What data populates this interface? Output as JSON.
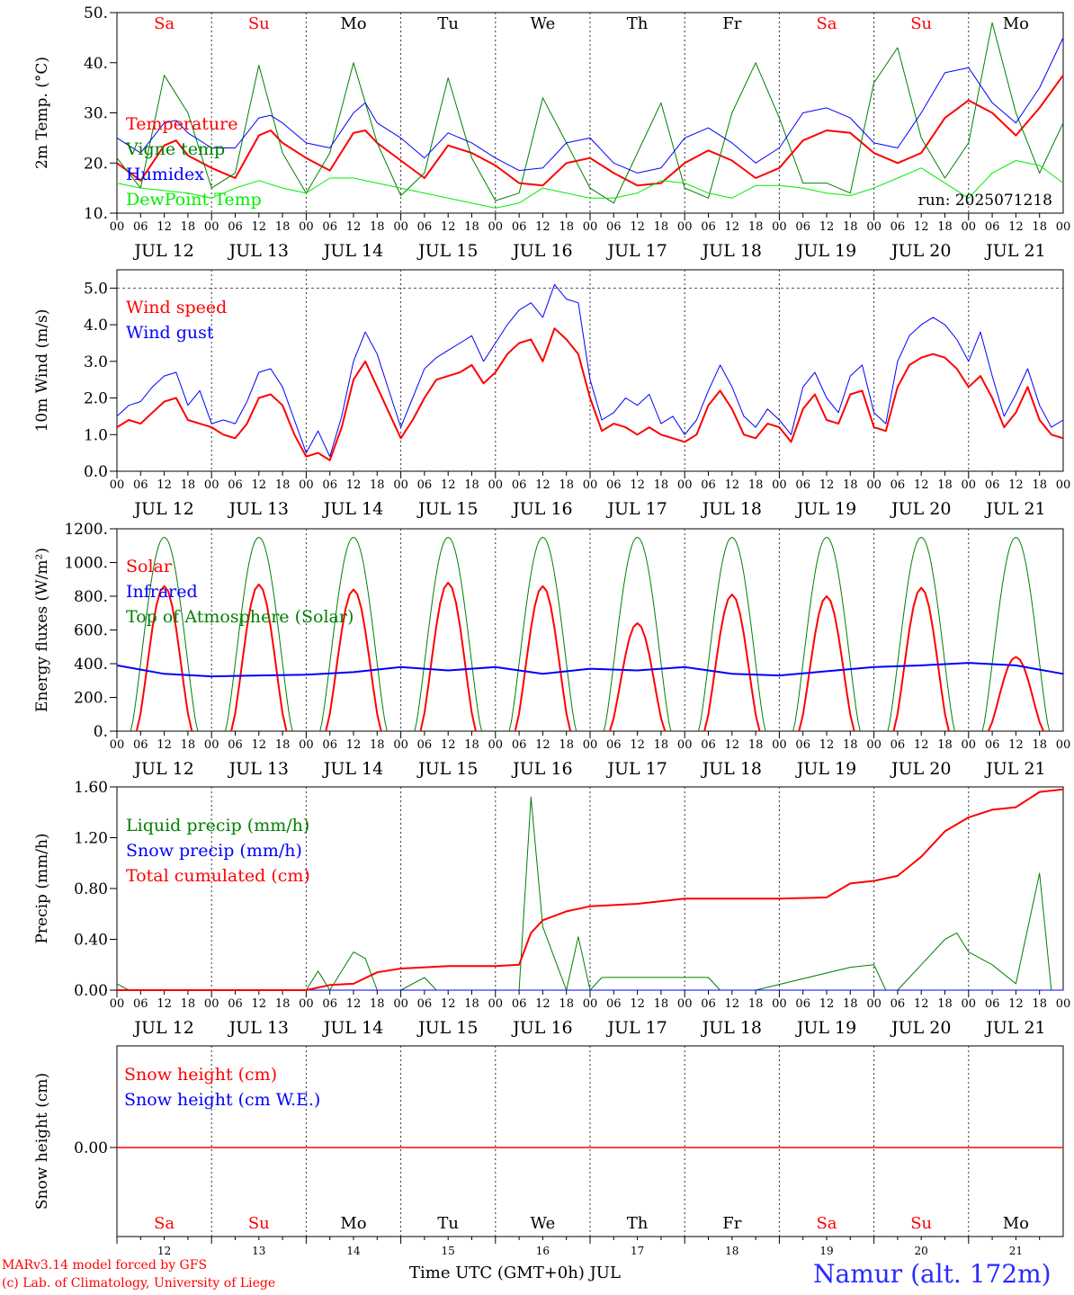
{
  "run_label": "run: 2025071218",
  "footer": {
    "model_line": "MARv3.14 model forced by GFS",
    "copyright_line": "(c) Lab. of Climatology, University of Liege",
    "xaxis_title": "Time UTC (GMT+0h) JUL",
    "station": "Namur (alt. 172m)"
  },
  "colors": {
    "red": "#ff0000",
    "blue": "#0000ff",
    "green": "#008000",
    "lightgreen": "#00ee00",
    "weekend": "#ff0000",
    "weekday": "#000000"
  },
  "days": [
    {
      "abbr": "Sa",
      "date": "JUL 12",
      "num": "12",
      "weekend": true
    },
    {
      "abbr": "Su",
      "date": "JUL 13",
      "num": "13",
      "weekend": true
    },
    {
      "abbr": "Mo",
      "date": "JUL 14",
      "num": "14",
      "weekend": false
    },
    {
      "abbr": "Tu",
      "date": "JUL 15",
      "num": "15",
      "weekend": false
    },
    {
      "abbr": "We",
      "date": "JUL 16",
      "num": "16",
      "weekend": false
    },
    {
      "abbr": "Th",
      "date": "JUL 17",
      "num": "17",
      "weekend": false
    },
    {
      "abbr": "Fr",
      "date": "JUL 18",
      "num": "18",
      "weekend": false
    },
    {
      "abbr": "Sa",
      "date": "JUL 19",
      "num": "19",
      "weekend": true
    },
    {
      "abbr": "Su",
      "date": "JUL 20",
      "num": "20",
      "weekend": true
    },
    {
      "abbr": "Mo",
      "date": "JUL 21",
      "num": "21",
      "weekend": false
    }
  ],
  "hour_ticks": [
    "00",
    "06",
    "12",
    "18"
  ],
  "final_hour_tick": "00",
  "chart_data": [
    {
      "type": "line",
      "ylabel": "2m Temp. (°C)",
      "ylim": [
        10,
        50
      ],
      "yticks": [
        "10.",
        "20.",
        "30.",
        "40.",
        "50."
      ],
      "x_unit": "hours from JUL 12 00 UTC",
      "series": [
        {
          "name": "Temperature",
          "color": "#ff0000",
          "width": 2,
          "x": [
            0,
            6,
            12,
            15,
            18,
            24,
            30,
            36,
            39,
            42,
            48,
            54,
            60,
            63,
            66,
            72,
            78,
            84,
            90,
            96,
            102,
            108,
            114,
            120,
            126,
            132,
            138,
            144,
            150,
            156,
            162,
            168,
            174,
            180,
            186,
            192,
            198,
            204,
            210,
            216,
            222,
            228,
            234,
            240
          ],
          "y": [
            20,
            16.5,
            23.5,
            24.5,
            21.5,
            19,
            17,
            25.5,
            26.5,
            24,
            21,
            18.5,
            26,
            26.5,
            24,
            20.5,
            17,
            23.5,
            22,
            19.5,
            16,
            15.5,
            20,
            21,
            18,
            15.5,
            16,
            20,
            22.5,
            20.5,
            17,
            19,
            24.5,
            26.5,
            26,
            22,
            20,
            22,
            29,
            32.5,
            30,
            25.5,
            31,
            37.5
          ]
        },
        {
          "name": "Vigne temp",
          "color": "#008000",
          "width": 1,
          "x": [
            0,
            6,
            12,
            18,
            24,
            30,
            36,
            42,
            48,
            54,
            60,
            66,
            72,
            78,
            84,
            90,
            96,
            102,
            108,
            114,
            120,
            126,
            132,
            138,
            144,
            150,
            156,
            162,
            168,
            174,
            180,
            186,
            192,
            198,
            204,
            210,
            216,
            222,
            228,
            234,
            240
          ],
          "y": [
            21,
            15,
            37.5,
            30,
            15,
            18,
            39.5,
            22,
            14,
            22,
            40,
            24,
            13.5,
            18,
            37,
            21,
            12.5,
            14,
            33,
            24,
            15,
            12,
            22,
            32,
            15,
            13,
            30,
            40,
            29,
            16,
            16,
            14,
            36,
            43,
            25,
            17,
            24,
            48,
            30,
            18,
            28
          ]
        },
        {
          "name": "Humidex",
          "color": "#0000ff",
          "width": 1,
          "x": [
            0,
            6,
            12,
            15,
            18,
            24,
            30,
            36,
            39,
            42,
            48,
            54,
            60,
            63,
            66,
            72,
            78,
            84,
            90,
            96,
            102,
            108,
            114,
            120,
            126,
            132,
            138,
            144,
            150,
            156,
            162,
            168,
            174,
            180,
            186,
            192,
            198,
            204,
            210,
            216,
            222,
            228,
            234,
            240
          ],
          "y": [
            25,
            22,
            28,
            28.5,
            26,
            23,
            23,
            29,
            29.5,
            28,
            24,
            23,
            30,
            32,
            28,
            25,
            21,
            26,
            24,
            21,
            18.5,
            19,
            24,
            25,
            20,
            18,
            19,
            25,
            27,
            24,
            20,
            23,
            30,
            31,
            29,
            24,
            23,
            30,
            38,
            39,
            32,
            28,
            35,
            45
          ]
        },
        {
          "name": "DewPoint Temp",
          "color": "#00ee00",
          "width": 1,
          "x": [
            0,
            6,
            12,
            18,
            24,
            30,
            36,
            42,
            48,
            54,
            60,
            66,
            72,
            78,
            84,
            90,
            96,
            102,
            108,
            114,
            120,
            126,
            132,
            138,
            144,
            150,
            156,
            162,
            168,
            174,
            180,
            186,
            192,
            198,
            204,
            210,
            216,
            222,
            228,
            234,
            240
          ],
          "y": [
            16,
            15,
            14.5,
            14,
            13,
            15,
            16.5,
            15,
            14,
            17,
            17,
            16,
            15,
            14,
            13,
            12,
            11,
            12,
            15,
            14,
            13,
            13,
            14,
            16.5,
            16,
            14,
            13,
            15.5,
            15.5,
            15,
            14,
            13.5,
            15,
            17,
            19,
            16,
            13,
            18,
            20.5,
            19.5,
            16
          ]
        }
      ]
    },
    {
      "type": "line",
      "ylabel": "10m Wind (m/s)",
      "ylim": [
        0,
        5.5
      ],
      "yticks": [
        "0.0",
        "1.0",
        "2.0",
        "3.0",
        "4.0",
        "5.0"
      ],
      "reference_line": 5.0,
      "series": [
        {
          "name": "Wind speed",
          "color": "#ff0000",
          "width": 2,
          "x": [
            0,
            3,
            6,
            9,
            12,
            15,
            18,
            21,
            24,
            27,
            30,
            33,
            36,
            39,
            42,
            45,
            48,
            51,
            54,
            57,
            60,
            63,
            66,
            69,
            72,
            75,
            78,
            81,
            84,
            87,
            90,
            93,
            96,
            99,
            102,
            105,
            108,
            111,
            114,
            117,
            120,
            123,
            126,
            129,
            132,
            135,
            138,
            141,
            144,
            147,
            150,
            153,
            156,
            159,
            162,
            165,
            168,
            171,
            174,
            177,
            180,
            183,
            186,
            189,
            192,
            195,
            198,
            201,
            204,
            207,
            210,
            213,
            216,
            219,
            222,
            225,
            228,
            231,
            234,
            237,
            240
          ],
          "y": [
            1.2,
            1.4,
            1.3,
            1.6,
            1.9,
            2.0,
            1.4,
            1.3,
            1.2,
            1.0,
            0.9,
            1.3,
            2.0,
            2.1,
            1.8,
            1.0,
            0.4,
            0.5,
            0.3,
            1.2,
            2.5,
            3.0,
            2.3,
            1.6,
            0.9,
            1.4,
            2.0,
            2.5,
            2.6,
            2.7,
            2.9,
            2.4,
            2.7,
            3.2,
            3.5,
            3.6,
            3.0,
            3.9,
            3.6,
            3.2,
            2.0,
            1.1,
            1.3,
            1.2,
            1.0,
            1.2,
            1.0,
            0.9,
            0.8,
            1.0,
            1.8,
            2.2,
            1.7,
            1.0,
            0.9,
            1.3,
            1.2,
            0.8,
            1.7,
            2.1,
            1.4,
            1.3,
            2.1,
            2.2,
            1.2,
            1.1,
            2.3,
            2.9,
            3.1,
            3.2,
            3.1,
            2.8,
            2.3,
            2.6,
            2.0,
            1.2,
            1.6,
            2.3,
            1.4,
            1.0,
            0.9
          ]
        },
        {
          "name": "Wind gust",
          "color": "#0000ff",
          "width": 1,
          "x": [
            0,
            3,
            6,
            9,
            12,
            15,
            18,
            21,
            24,
            27,
            30,
            33,
            36,
            39,
            42,
            45,
            48,
            51,
            54,
            57,
            60,
            63,
            66,
            69,
            72,
            75,
            78,
            81,
            84,
            87,
            90,
            93,
            96,
            99,
            102,
            105,
            108,
            111,
            114,
            117,
            120,
            123,
            126,
            129,
            132,
            135,
            138,
            141,
            144,
            147,
            150,
            153,
            156,
            159,
            162,
            165,
            168,
            171,
            174,
            177,
            180,
            183,
            186,
            189,
            192,
            195,
            198,
            201,
            204,
            207,
            210,
            213,
            216,
            219,
            222,
            225,
            228,
            231,
            234,
            237,
            240
          ],
          "y": [
            1.5,
            1.8,
            1.9,
            2.3,
            2.6,
            2.7,
            1.8,
            2.2,
            1.3,
            1.4,
            1.3,
            1.9,
            2.7,
            2.8,
            2.3,
            1.4,
            0.5,
            1.1,
            0.4,
            1.5,
            3.0,
            3.8,
            3.2,
            2.2,
            1.2,
            2.0,
            2.8,
            3.1,
            3.3,
            3.5,
            3.7,
            3.0,
            3.5,
            4.0,
            4.4,
            4.6,
            4.2,
            5.1,
            4.7,
            4.6,
            2.5,
            1.4,
            1.6,
            2.0,
            1.8,
            2.1,
            1.3,
            1.5,
            1.0,
            1.4,
            2.2,
            2.9,
            2.3,
            1.5,
            1.2,
            1.7,
            1.4,
            1.0,
            2.3,
            2.7,
            2.0,
            1.6,
            2.6,
            2.9,
            1.6,
            1.3,
            3.0,
            3.7,
            4.0,
            4.2,
            4.0,
            3.6,
            3.0,
            3.8,
            2.6,
            1.5,
            2.1,
            2.8,
            1.8,
            1.2,
            1.4
          ]
        }
      ]
    },
    {
      "type": "line",
      "ylabel": "Energy fluxes (W/m²)",
      "ylim": [
        0,
        1200
      ],
      "yticks": [
        "0.",
        "200.",
        "400.",
        "600.",
        "800.",
        "1000.",
        "1200."
      ],
      "series": [
        {
          "name": "Solar",
          "color": "#ff0000",
          "width": 2,
          "peaks": [
            860,
            870,
            840,
            880,
            860,
            640,
            810,
            800,
            850,
            440
          ]
        },
        {
          "name": "Infrared",
          "color": "#0000ff",
          "width": 2,
          "x": [
            0,
            12,
            24,
            36,
            48,
            60,
            72,
            84,
            96,
            108,
            120,
            132,
            144,
            156,
            168,
            180,
            192,
            204,
            216,
            228,
            240
          ],
          "y": [
            390,
            340,
            325,
            330,
            335,
            350,
            380,
            360,
            380,
            340,
            370,
            360,
            380,
            340,
            330,
            355,
            380,
            390,
            405,
            390,
            340
          ]
        },
        {
          "name": "Top of Atmosphere (Solar)",
          "color": "#008000",
          "width": 1,
          "daily_peak": 1150
        }
      ]
    },
    {
      "type": "line",
      "ylabel": "Precip (mm/h)",
      "ylim": [
        0,
        1.6
      ],
      "yticks": [
        "0.00",
        "0.40",
        "0.80",
        "1.20",
        "1.60"
      ],
      "series": [
        {
          "name": "Liquid precip (mm/h)",
          "color": "#008000",
          "width": 1,
          "x": [
            0,
            3,
            6,
            48,
            51,
            54,
            60,
            63,
            66,
            72,
            78,
            81,
            84,
            96,
            102,
            105,
            108,
            111,
            114,
            117,
            120,
            123,
            150,
            153,
            162,
            186,
            192,
            195,
            198,
            204,
            210,
            213,
            216,
            222,
            228,
            234,
            237,
            240
          ],
          "y": [
            0.05,
            0,
            0,
            0,
            0.15,
            0,
            0.3,
            0.25,
            0,
            0,
            0.1,
            0,
            0,
            0,
            0,
            1.52,
            0.5,
            0.25,
            0,
            0.42,
            0,
            0.1,
            0.1,
            0,
            0,
            0.18,
            0.2,
            0,
            0,
            0.2,
            0.4,
            0.45,
            0.3,
            0.2,
            0.05,
            0.92,
            0,
            0
          ]
        },
        {
          "name": "Snow precip (mm/h)",
          "color": "#0000ff",
          "width": 1,
          "x": [
            0,
            240
          ],
          "y": [
            0,
            0
          ]
        },
        {
          "name": "Total cumulated (cm)",
          "color": "#ff0000",
          "width": 2,
          "x": [
            0,
            48,
            54,
            60,
            66,
            72,
            84,
            96,
            102,
            105,
            108,
            114,
            120,
            132,
            144,
            168,
            180,
            186,
            192,
            198,
            204,
            210,
            216,
            222,
            228,
            234,
            240
          ],
          "y": [
            0,
            0,
            0.04,
            0.05,
            0.14,
            0.17,
            0.19,
            0.19,
            0.2,
            0.45,
            0.55,
            0.62,
            0.66,
            0.68,
            0.72,
            0.72,
            0.73,
            0.84,
            0.86,
            0.9,
            1.05,
            1.25,
            1.36,
            1.42,
            1.44,
            1.56,
            1.58
          ]
        }
      ]
    },
    {
      "type": "line",
      "ylabel": "Snow height (cm)",
      "yticks": [
        "0.00"
      ],
      "series": [
        {
          "name": "Snow height (cm)",
          "color": "#ff0000",
          "width": 1,
          "constant": 0
        },
        {
          "name": "Snow height (cm W.E.)",
          "color": "#0000ff",
          "width": 1,
          "constant": 0
        }
      ]
    }
  ]
}
